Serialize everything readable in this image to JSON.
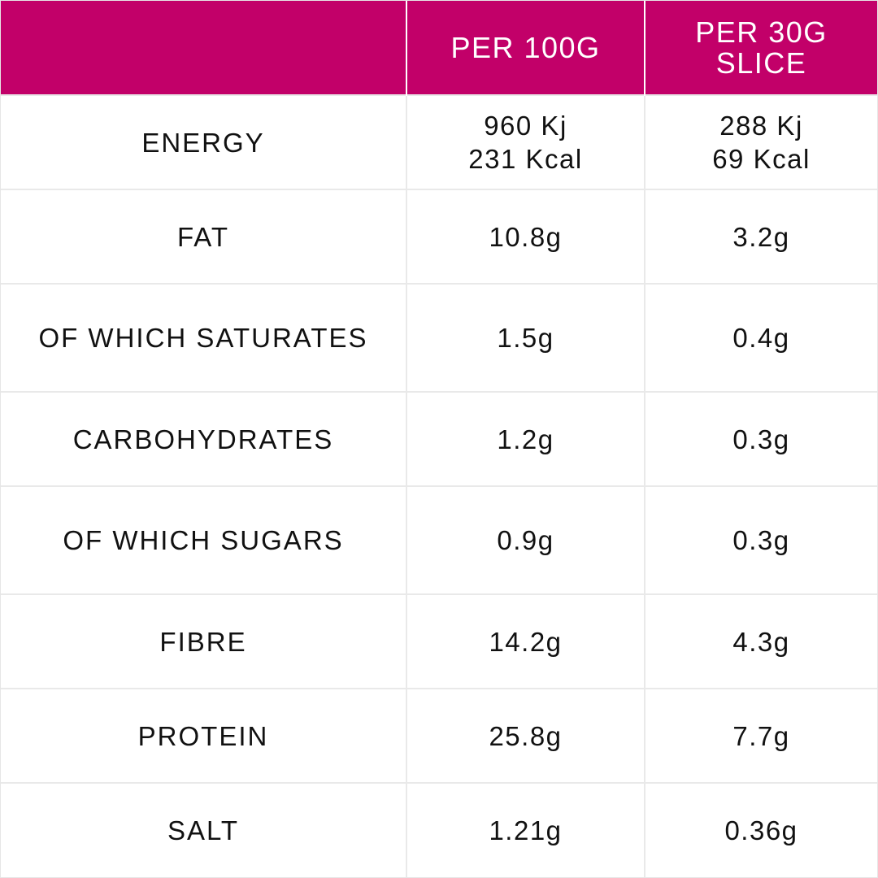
{
  "header": {
    "col1": "",
    "col2": "PER 100G",
    "col3_line1": "PER 30G",
    "col3_line2": "SLICE"
  },
  "colors": {
    "header_bg": "#c20069",
    "header_text": "#ffffff",
    "grid_line": "#e9e9e9",
    "body_text": "#111111"
  },
  "rows": [
    {
      "label": "ENERGY",
      "per100_line1": "960 Kj",
      "per100_line2": "231 Kcal",
      "per30_line1": "288 Kj",
      "per30_line2": "69 Kcal"
    },
    {
      "label": "FAT",
      "per100": "10.8g",
      "per30": "3.2g"
    },
    {
      "label": "OF WHICH SATURATES",
      "per100": "1.5g",
      "per30": "0.4g"
    },
    {
      "label": "CARBOHYDRATES",
      "per100": "1.2g",
      "per30": "0.3g"
    },
    {
      "label": "OF WHICH SUGARS",
      "per100": "0.9g",
      "per30": "0.3g"
    },
    {
      "label": "FIBRE",
      "per100": "14.2g",
      "per30": "4.3g"
    },
    {
      "label": "PROTEIN",
      "per100": "25.8g",
      "per30": "7.7g"
    },
    {
      "label": "SALT",
      "per100": "1.21g",
      "per30": "0.36g"
    }
  ]
}
